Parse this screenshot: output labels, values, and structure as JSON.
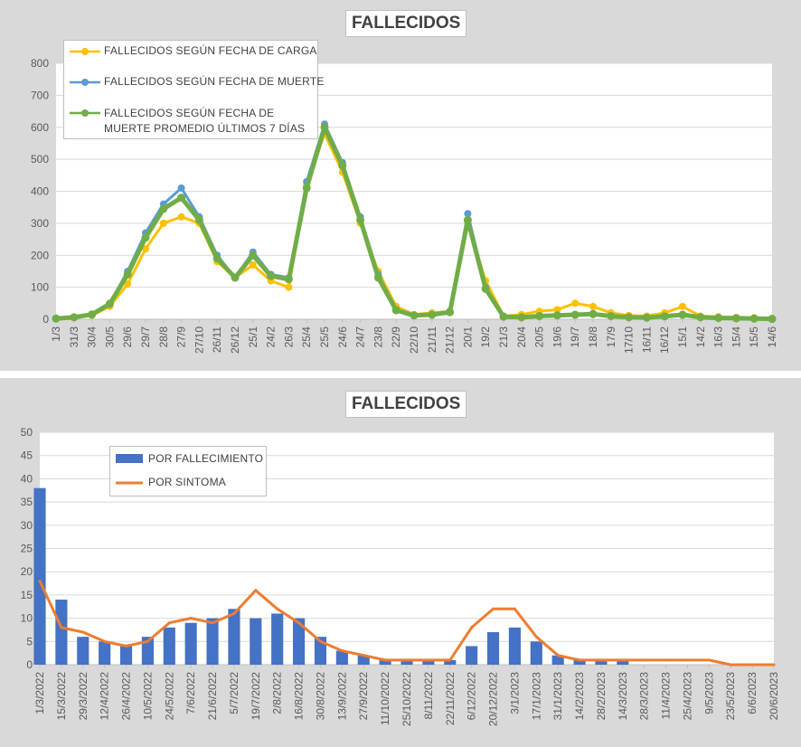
{
  "chart_data": [
    {
      "type": "line",
      "title": "FALLECIDOS",
      "xlabel": "",
      "ylabel": "",
      "ylim": [
        0,
        800
      ],
      "yticks": [
        0,
        100,
        200,
        300,
        400,
        500,
        600,
        700,
        800
      ],
      "grid": true,
      "legend_position": "top-left",
      "x_tick_labels": [
        "1/3",
        "31/3",
        "30/4",
        "30/5",
        "29/6",
        "29/7",
        "28/8",
        "27/9",
        "27/10",
        "26/11",
        "26/12",
        "25/1",
        "24/2",
        "26/3",
        "25/4",
        "25/5",
        "24/6",
        "24/7",
        "23/8",
        "22/9",
        "22/10",
        "21/11",
        "21/12",
        "20/1",
        "19/2",
        "21/3",
        "20/4",
        "20/5",
        "19/6",
        "19/7",
        "18/8",
        "17/9",
        "17/10",
        "16/11",
        "16/12",
        "15/1",
        "14/2",
        "16/3",
        "15/4",
        "15/5",
        "14/6"
      ],
      "x": [
        0,
        1,
        2,
        3,
        4,
        5,
        6,
        7,
        8,
        9,
        10,
        11,
        12,
        13,
        14,
        15,
        16,
        17,
        18,
        19,
        20,
        21,
        22,
        23,
        24,
        25,
        26,
        27,
        28,
        29,
        30,
        31,
        32,
        33,
        34,
        35,
        36,
        37,
        38,
        39,
        40
      ],
      "series": [
        {
          "name": "FALLECIDOS SEGÚN FECHA DE CARGA",
          "color": "#ffc000",
          "values": [
            2,
            5,
            12,
            40,
            110,
            220,
            300,
            320,
            300,
            180,
            130,
            170,
            120,
            100,
            420,
            580,
            460,
            300,
            150,
            40,
            15,
            20,
            25,
            300,
            120,
            10,
            15,
            25,
            30,
            50,
            40,
            20,
            12,
            10,
            20,
            40,
            10,
            8,
            6,
            5,
            3
          ]
        },
        {
          "name": "FALLECIDOS SEGÚN FECHA DE MUERTE",
          "color": "#5b9bd5",
          "values": [
            2,
            6,
            15,
            50,
            150,
            270,
            360,
            410,
            320,
            200,
            130,
            210,
            140,
            130,
            430,
            610,
            490,
            320,
            140,
            30,
            12,
            15,
            25,
            330,
            100,
            8,
            5,
            10,
            12,
            15,
            18,
            10,
            6,
            5,
            10,
            15,
            6,
            4,
            3,
            2,
            1
          ]
        },
        {
          "name": "FALLECIDOS SEGÚN FECHA DE MUERTE PROMEDIO ÚLTIMOS 7 DÍAS",
          "color": "#70ad47",
          "values": [
            2,
            6,
            15,
            48,
            140,
            255,
            345,
            380,
            310,
            190,
            130,
            200,
            135,
            125,
            410,
            600,
            480,
            310,
            130,
            28,
            12,
            14,
            22,
            310,
            95,
            8,
            6,
            10,
            12,
            14,
            16,
            10,
            6,
            5,
            9,
            14,
            6,
            4,
            3,
            2,
            1
          ]
        }
      ]
    },
    {
      "type": "bar",
      "title": "FALLECIDOS",
      "xlabel": "",
      "ylabel": "",
      "ylim": [
        0,
        50
      ],
      "yticks": [
        0,
        5,
        10,
        15,
        20,
        25,
        30,
        35,
        40,
        45,
        50
      ],
      "grid": true,
      "legend_position": "top-left",
      "x_tick_labels": [
        "1/3/2022",
        "15/3/2022",
        "29/3/2022",
        "12/4/2022",
        "26/4/2022",
        "10/5/2022",
        "24/5/2022",
        "7/6/2022",
        "21/6/2022",
        "5/7/2022",
        "19/7/2022",
        "2/8/2022",
        "16/8/2022",
        "30/8/2022",
        "13/9/2022",
        "27/9/2022",
        "11/10/2022",
        "25/10/2022",
        "8/11/2022",
        "22/11/2022",
        "6/12/2022",
        "20/12/2022",
        "3/1/2023",
        "17/1/2023",
        "31/1/2023",
        "14/2/2023",
        "28/2/2023",
        "14/3/2023",
        "28/3/2023",
        "11/4/2023",
        "25/4/2023",
        "9/5/2023",
        "23/5/2023",
        "6/6/2023",
        "20/6/2023"
      ],
      "x": [
        0,
        1,
        2,
        3,
        4,
        5,
        6,
        7,
        8,
        9,
        10,
        11,
        12,
        13,
        14,
        15,
        16,
        17,
        18,
        19,
        20,
        21,
        22,
        23,
        24,
        25,
        26,
        27,
        28,
        29,
        30,
        31,
        32,
        33,
        34
      ],
      "series": [
        {
          "name": "POR FALLECIMIENTO",
          "color": "#4472c4",
          "values": [
            38,
            14,
            6,
            5,
            4,
            6,
            8,
            9,
            10,
            12,
            10,
            11,
            10,
            6,
            3,
            2,
            1,
            1,
            1,
            1,
            4,
            7,
            8,
            5,
            2,
            1,
            1,
            1,
            0,
            0,
            0,
            0,
            0,
            0,
            0
          ]
        },
        {
          "name": "POR SINTOMA",
          "color": "#ed7d31",
          "values": [
            18,
            8,
            7,
            5,
            4,
            5,
            9,
            10,
            9,
            11,
            16,
            12,
            9,
            5,
            3,
            2,
            1,
            1,
            1,
            1,
            8,
            12,
            12,
            6,
            2,
            1,
            1,
            1,
            1,
            1,
            1,
            1,
            0,
            0,
            0
          ]
        }
      ]
    }
  ]
}
